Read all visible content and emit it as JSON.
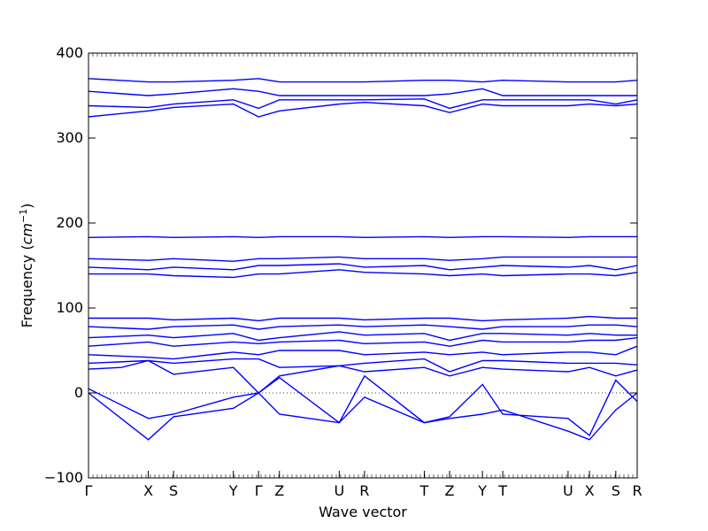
{
  "chart_data": {
    "type": "line",
    "title": "",
    "xlabel": "Wave vector",
    "ylabel": "Frequency (cm^-1)",
    "ylabel_prefix": "Frequency (",
    "ylabel_unit": "cm",
    "ylabel_exp": "−1",
    "ylabel_suffix": ")",
    "ylim": [
      -100,
      400
    ],
    "yticks": [
      -100,
      0,
      100,
      200,
      300,
      400
    ],
    "xlim": [
      0,
      1
    ],
    "zero_line": "dotted",
    "line_color": "#0000ff",
    "high_symmetry_points": [
      {
        "label": "Γ",
        "x": 0.0
      },
      {
        "label": "X",
        "x": 0.109
      },
      {
        "label": "S",
        "x": 0.155
      },
      {
        "label": "Y",
        "x": 0.264
      },
      {
        "label": "Γ",
        "x": 0.31
      },
      {
        "label": "Z",
        "x": 0.348
      },
      {
        "label": "U",
        "x": 0.457
      },
      {
        "label": "R",
        "x": 0.503
      },
      {
        "label": "T",
        "x": 0.612
      },
      {
        "label": "Z",
        "x": 0.658
      },
      {
        "label": "Y",
        "x": 0.718
      },
      {
        "label": "T",
        "x": 0.755
      },
      {
        "label": "U",
        "x": 0.874
      },
      {
        "label": "X",
        "x": 0.913
      },
      {
        "label": "S",
        "x": 0.961
      },
      {
        "label": "R",
        "x": 1.0
      }
    ],
    "series": [
      {
        "x": [
          0,
          0.109,
          0.155,
          0.264,
          0.31,
          0.348,
          0.457,
          0.503,
          0.612,
          0.658,
          0.718,
          0.755,
          0.874,
          0.913,
          0.961,
          1.0
        ],
        "y": [
          0,
          -55,
          -28,
          -18,
          0,
          -25,
          -35,
          20,
          -35,
          -30,
          -25,
          -20,
          -45,
          -55,
          -20,
          0
        ]
      },
      {
        "x": [
          0,
          0.109,
          0.155,
          0.264,
          0.31,
          0.348,
          0.457,
          0.503,
          0.612,
          0.658,
          0.718,
          0.755,
          0.874,
          0.913,
          0.961,
          1.0
        ],
        "y": [
          5,
          -30,
          -25,
          -5,
          0,
          18,
          -35,
          -5,
          -35,
          -28,
          10,
          -25,
          -30,
          -50,
          15,
          -10
        ]
      },
      {
        "x": [
          0,
          0.06,
          0.109,
          0.155,
          0.264,
          0.31,
          0.348,
          0.457,
          0.503,
          0.612,
          0.658,
          0.718,
          0.755,
          0.874,
          0.913,
          0.961,
          1.0
        ],
        "y": [
          28,
          30,
          38,
          22,
          30,
          0,
          20,
          32,
          25,
          30,
          20,
          30,
          28,
          25,
          30,
          20,
          27
        ]
      },
      {
        "x": [
          0,
          0.109,
          0.155,
          0.264,
          0.31,
          0.348,
          0.457,
          0.503,
          0.612,
          0.658,
          0.718,
          0.755,
          0.874,
          0.913,
          0.961,
          1.0
        ],
        "y": [
          35,
          38,
          35,
          40,
          40,
          30,
          32,
          35,
          40,
          25,
          38,
          38,
          35,
          35,
          35,
          33
        ]
      },
      {
        "x": [
          0,
          0.109,
          0.155,
          0.264,
          0.31,
          0.348,
          0.457,
          0.503,
          0.612,
          0.658,
          0.718,
          0.755,
          0.874,
          0.913,
          0.961,
          1.0
        ],
        "y": [
          45,
          42,
          40,
          48,
          45,
          50,
          50,
          45,
          48,
          45,
          48,
          45,
          48,
          48,
          45,
          55
        ]
      },
      {
        "x": [
          0,
          0.109,
          0.155,
          0.264,
          0.31,
          0.348,
          0.457,
          0.503,
          0.612,
          0.658,
          0.718,
          0.755,
          0.874,
          0.913,
          0.961,
          1.0
        ],
        "y": [
          55,
          60,
          55,
          60,
          58,
          60,
          62,
          58,
          60,
          55,
          62,
          60,
          60,
          62,
          62,
          65
        ]
      },
      {
        "x": [
          0,
          0.109,
          0.155,
          0.264,
          0.31,
          0.348,
          0.457,
          0.503,
          0.612,
          0.658,
          0.718,
          0.755,
          0.874,
          0.913,
          0.961,
          1.0
        ],
        "y": [
          65,
          68,
          65,
          70,
          62,
          65,
          72,
          68,
          70,
          62,
          70,
          70,
          68,
          70,
          68,
          68
        ]
      },
      {
        "x": [
          0,
          0.109,
          0.155,
          0.264,
          0.31,
          0.348,
          0.457,
          0.503,
          0.612,
          0.658,
          0.718,
          0.755,
          0.874,
          0.913,
          0.961,
          1.0
        ],
        "y": [
          78,
          75,
          78,
          80,
          75,
          78,
          80,
          78,
          80,
          78,
          75,
          78,
          78,
          80,
          80,
          78
        ]
      },
      {
        "x": [
          0,
          0.109,
          0.155,
          0.264,
          0.31,
          0.348,
          0.457,
          0.503,
          0.612,
          0.658,
          0.718,
          0.755,
          0.874,
          0.913,
          0.961,
          1.0
        ],
        "y": [
          88,
          88,
          86,
          88,
          85,
          88,
          88,
          86,
          88,
          88,
          85,
          86,
          88,
          90,
          88,
          88
        ]
      },
      {
        "x": [
          0,
          0.109,
          0.155,
          0.264,
          0.31,
          0.348,
          0.457,
          0.503,
          0.612,
          0.658,
          0.718,
          0.755,
          0.874,
          0.913,
          0.961,
          1.0
        ],
        "y": [
          140,
          140,
          138,
          136,
          140,
          140,
          145,
          142,
          140,
          138,
          140,
          138,
          140,
          140,
          138,
          142
        ]
      },
      {
        "x": [
          0,
          0.109,
          0.155,
          0.264,
          0.31,
          0.348,
          0.457,
          0.503,
          0.612,
          0.658,
          0.718,
          0.755,
          0.874,
          0.913,
          0.961,
          1.0
        ],
        "y": [
          148,
          145,
          148,
          145,
          150,
          150,
          152,
          148,
          150,
          145,
          148,
          150,
          148,
          150,
          145,
          150
        ]
      },
      {
        "x": [
          0,
          0.109,
          0.155,
          0.264,
          0.31,
          0.348,
          0.457,
          0.503,
          0.612,
          0.658,
          0.718,
          0.755,
          0.874,
          0.913,
          0.961,
          1.0
        ],
        "y": [
          158,
          156,
          158,
          155,
          158,
          158,
          160,
          158,
          158,
          156,
          158,
          160,
          160,
          160,
          160,
          160
        ]
      },
      {
        "x": [
          0,
          0.109,
          0.155,
          0.264,
          0.31,
          0.348,
          0.457,
          0.503,
          0.612,
          0.658,
          0.718,
          0.755,
          0.874,
          0.913,
          0.961,
          1.0
        ],
        "y": [
          183,
          184,
          183,
          184,
          183,
          184,
          184,
          183,
          184,
          183,
          184,
          184,
          183,
          184,
          184,
          184
        ]
      },
      {
        "x": [
          0,
          0.109,
          0.155,
          0.264,
          0.31,
          0.348,
          0.457,
          0.503,
          0.612,
          0.658,
          0.718,
          0.755,
          0.874,
          0.913,
          0.961,
          1.0
        ],
        "y": [
          325,
          332,
          336,
          340,
          325,
          332,
          340,
          342,
          338,
          330,
          340,
          338,
          338,
          340,
          338,
          340
        ]
      },
      {
        "x": [
          0,
          0.109,
          0.155,
          0.264,
          0.31,
          0.348,
          0.457,
          0.503,
          0.612,
          0.658,
          0.718,
          0.755,
          0.874,
          0.913,
          0.961,
          1.0
        ],
        "y": [
          338,
          336,
          340,
          345,
          335,
          345,
          345,
          345,
          346,
          335,
          345,
          345,
          345,
          345,
          340,
          345
        ]
      },
      {
        "x": [
          0,
          0.109,
          0.155,
          0.264,
          0.31,
          0.348,
          0.457,
          0.503,
          0.612,
          0.658,
          0.718,
          0.755,
          0.874,
          0.913,
          0.961,
          1.0
        ],
        "y": [
          355,
          350,
          352,
          358,
          355,
          350,
          350,
          350,
          350,
          352,
          358,
          350,
          350,
          350,
          350,
          350
        ]
      },
      {
        "x": [
          0,
          0.109,
          0.155,
          0.264,
          0.31,
          0.348,
          0.457,
          0.503,
          0.612,
          0.658,
          0.718,
          0.755,
          0.874,
          0.913,
          0.961,
          1.0
        ],
        "y": [
          370,
          366,
          366,
          368,
          370,
          366,
          366,
          366,
          368,
          368,
          366,
          368,
          366,
          366,
          366,
          368
        ]
      }
    ]
  }
}
